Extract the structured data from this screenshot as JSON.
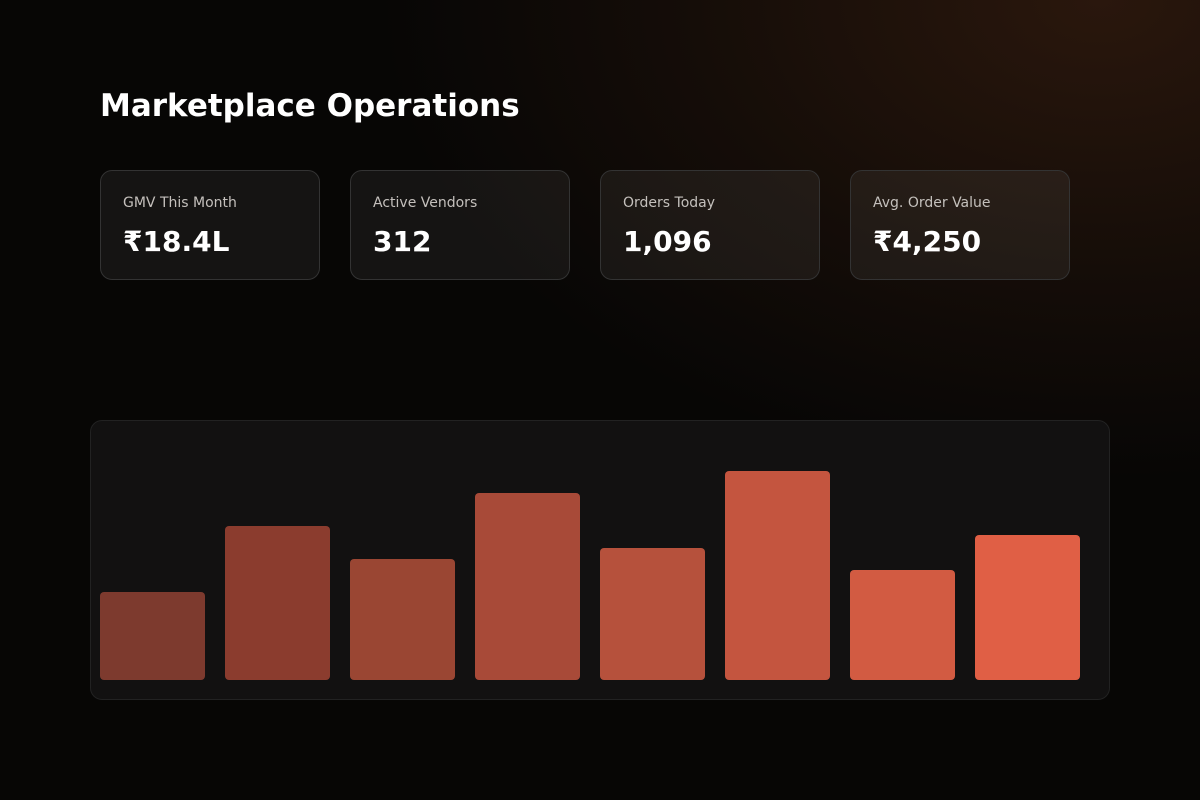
{
  "header": {
    "title": "Marketplace Operations"
  },
  "cards": [
    {
      "label": "GMV This Month",
      "value": "₹18.4L"
    },
    {
      "label": "Active Vendors",
      "value": "312"
    },
    {
      "label": "Orders Today",
      "value": "1,096"
    },
    {
      "label": "Avg. Order Value",
      "value": "₹4,250"
    }
  ],
  "chart_data": {
    "type": "bar",
    "values": [
      88,
      154,
      121,
      187,
      132,
      209,
      110,
      145
    ],
    "colors": [
      "#7d3a2e",
      "#8b3c2e",
      "#9a4633",
      "#a84a38",
      "#b6513c",
      "#c4553f",
      "#d25b42",
      "#e05f45"
    ],
    "ylim": [
      0,
      240
    ]
  }
}
